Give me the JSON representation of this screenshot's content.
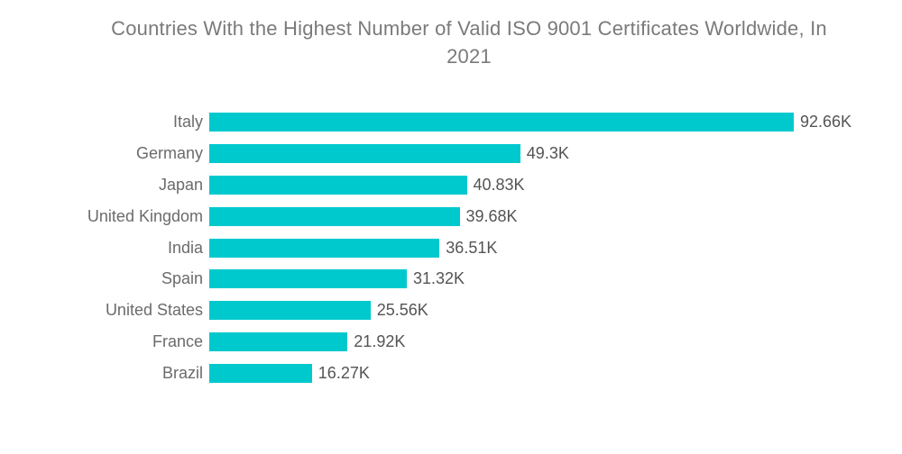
{
  "title": {
    "lines": [
      "Countries With the Highest Number of Valid ISO 9001 Certificates Worldwide, In",
      "2021"
    ],
    "full": "Countries With the Highest Number of Valid ISO 9001 Certificates Worldwide, In 2021"
  },
  "colors": {
    "bar": "#00c9ce",
    "title_text": "#7a7a7a",
    "category_text": "#6b6b6b",
    "value_text": "#545454",
    "background": "#ffffff"
  },
  "chart_data": {
    "type": "bar",
    "orientation": "horizontal",
    "title": "Countries With the Highest Number of Valid ISO 9001 Certificates Worldwide, In 2021",
    "categories": [
      "Italy",
      "Germany",
      "Japan",
      "United Kingdom",
      "India",
      "Spain",
      "United States",
      "France",
      "Brazil"
    ],
    "values": [
      92.66,
      49.3,
      40.83,
      39.68,
      36.51,
      31.32,
      25.56,
      21.92,
      16.27
    ],
    "value_labels": [
      "92.66K",
      "49.3K",
      "40.83K",
      "39.68K",
      "36.51K",
      "31.32K",
      "25.56K",
      "21.92K",
      "16.27K"
    ],
    "unit": "K",
    "xlabel": "",
    "ylabel": "",
    "xlim": [
      0,
      92.66
    ],
    "grid": false,
    "axes_visible": false,
    "legend": "none",
    "bar_color": "#00c9ce"
  }
}
